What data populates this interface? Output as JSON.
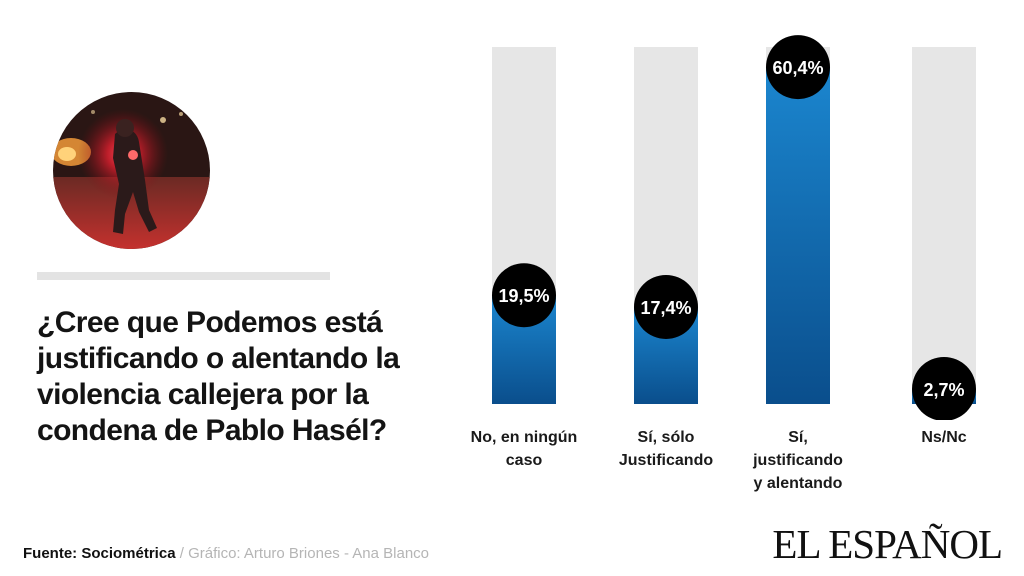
{
  "question": {
    "lines": [
      "¿Cree que Podemos está",
      "justificando o  alentando la",
      "violencia  callejera por la",
      "condena  de Pablo Hasél?"
    ]
  },
  "chart_data": {
    "type": "bar",
    "title": "¿Cree que Podemos está justificando o  alentando la violencia  callejera por la condena  de Pablo Hasél?",
    "categories": [
      [
        "No, en ningún",
        "caso"
      ],
      [
        "Sí, sólo",
        "Justificando"
      ],
      [
        "Sí,",
        "justificando",
        "y alentando"
      ],
      [
        "Ns/Nc"
      ]
    ],
    "values": [
      19.5,
      17.4,
      60.4,
      2.7
    ],
    "value_labels": [
      "19,5%",
      "17,4%",
      "60,4%",
      "2,7%"
    ],
    "unit": "%",
    "ylim": [
      0,
      64
    ],
    "grid": false,
    "legend": "none",
    "colors": {
      "bar_top": "#1b86cf",
      "bar_bottom": "#0a4e8c",
      "track": "#e6e6e6",
      "bubble": "#000000",
      "bubble_text": "#ffffff"
    }
  },
  "footer": {
    "source_label": "Fuente: Sociométrica",
    "separator": " / ",
    "credit": "Gráfico: Arturo Briones - Ana Blanco",
    "brand": "EL ESPAÑOL"
  }
}
